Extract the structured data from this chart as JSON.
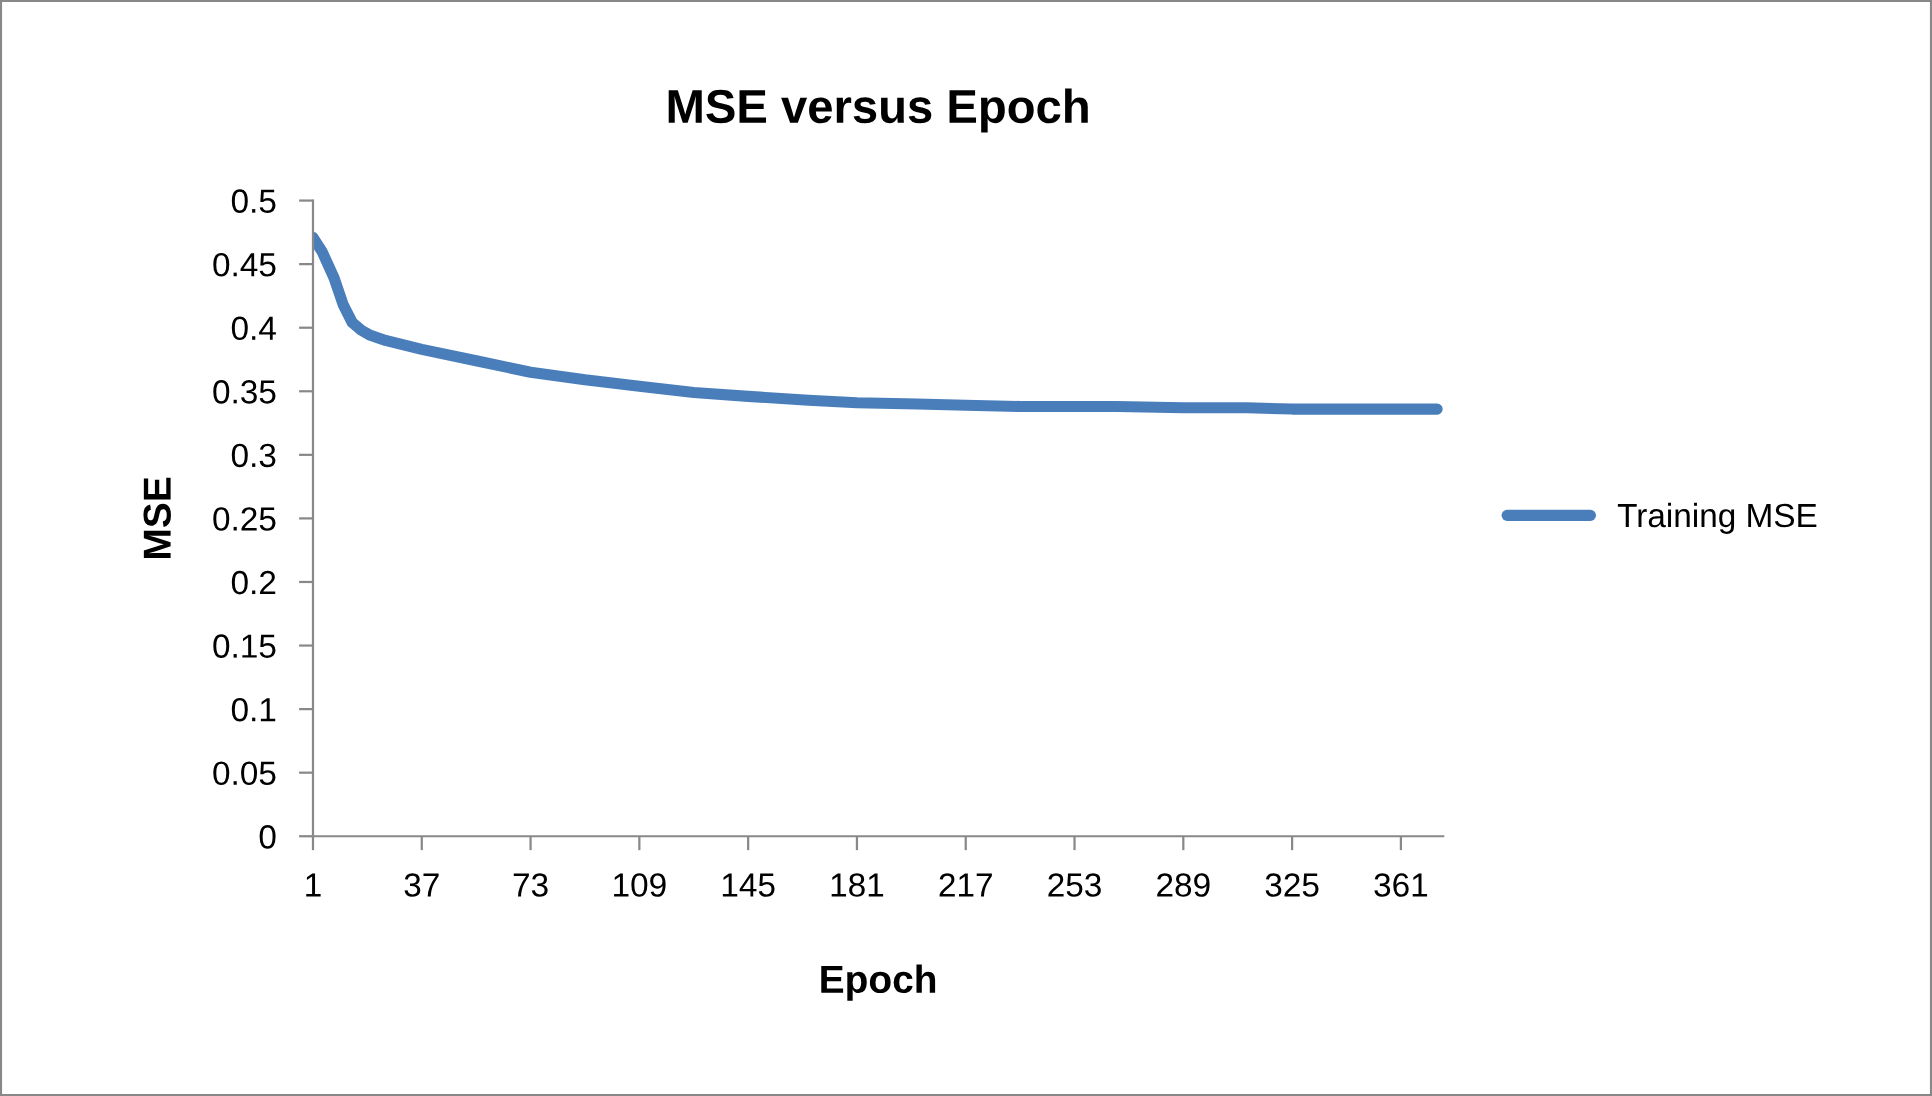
{
  "chart_data": {
    "type": "line",
    "title": "MSE versus Epoch",
    "xlabel": "Epoch",
    "ylabel": "MSE",
    "xlim": [
      1,
      375
    ],
    "xticks": [
      1,
      37,
      73,
      109,
      145,
      181,
      217,
      253,
      289,
      325,
      361
    ],
    "ylim": [
      0,
      0.5
    ],
    "yticks": [
      0,
      0.05,
      0.1,
      0.15,
      0.2,
      0.25,
      0.3,
      0.35,
      0.4,
      0.45,
      0.5
    ],
    "grid": false,
    "legend": "right",
    "marker": "none",
    "line_style": "solid",
    "series": [
      {
        "name": "Training MSE",
        "color": "#4a7ebb",
        "x": [
          1,
          4,
          8,
          11,
          14,
          17,
          20,
          25,
          30,
          37,
          55,
          73,
          91,
          109,
          127,
          145,
          165,
          181,
          201,
          217,
          235,
          253,
          267,
          289,
          310,
          325,
          345,
          361,
          373
        ],
        "values": [
          0.471,
          0.46,
          0.439,
          0.418,
          0.404,
          0.398,
          0.394,
          0.39,
          0.387,
          0.383,
          0.374,
          0.365,
          0.359,
          0.354,
          0.349,
          0.346,
          0.343,
          0.341,
          0.34,
          0.339,
          0.338,
          0.338,
          0.338,
          0.337,
          0.337,
          0.336,
          0.336,
          0.336,
          0.336
        ]
      }
    ]
  }
}
